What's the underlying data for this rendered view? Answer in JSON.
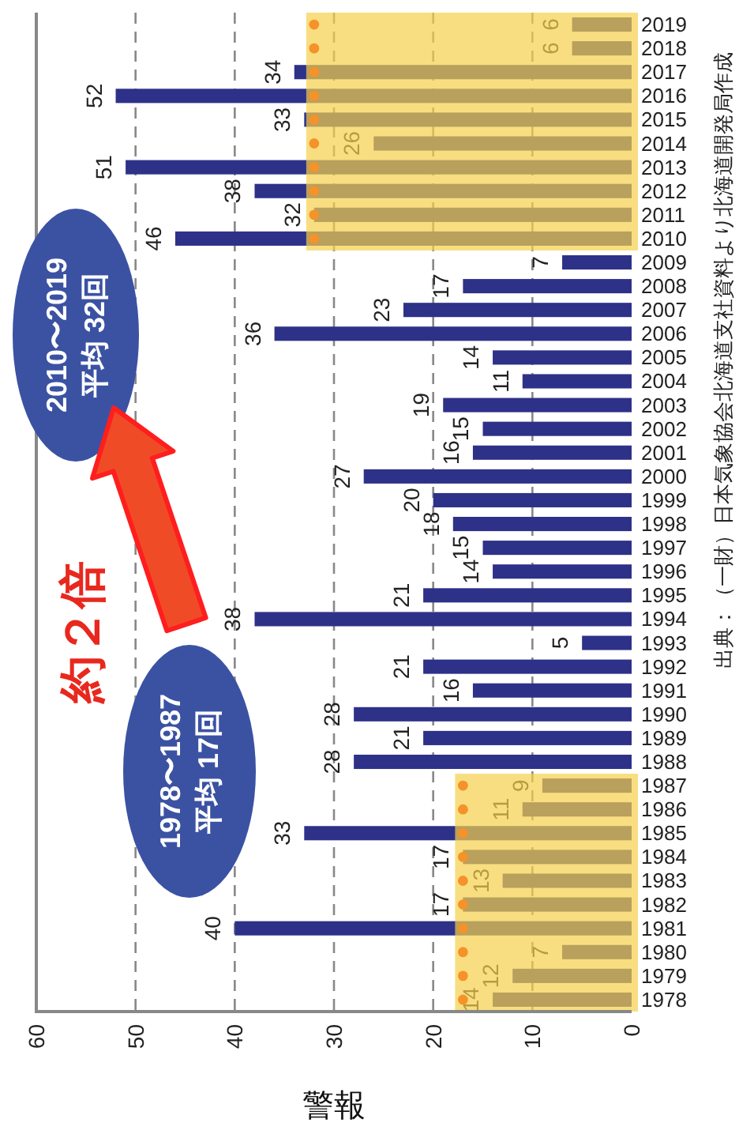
{
  "chart_data": {
    "type": "bar",
    "orientation": "horizontal",
    "xlabel": "警報",
    "categories": [
      "2019",
      "2018",
      "2017",
      "2016",
      "2015",
      "2014",
      "2013",
      "2012",
      "2011",
      "2010",
      "2009",
      "2008",
      "2007",
      "2006",
      "2005",
      "2004",
      "2003",
      "2002",
      "2001",
      "2000",
      "1999",
      "1998",
      "1997",
      "1996",
      "1995",
      "1994",
      "1993",
      "1992",
      "1991",
      "1990",
      "1989",
      "1988",
      "1987",
      "1986",
      "1985",
      "1984",
      "1983",
      "1982",
      "1981",
      "1980",
      "1979",
      "1978"
    ],
    "series": [
      {
        "color": "#2e3188",
        "values": [
          6,
          6,
          34,
          52,
          33,
          26,
          51,
          38,
          32,
          46,
          7,
          17,
          23,
          36,
          14,
          11,
          19,
          15,
          16,
          27,
          20,
          18,
          15,
          14,
          21,
          38,
          5,
          21,
          16,
          28,
          21,
          28,
          9,
          11,
          33,
          17,
          13,
          17,
          40,
          7,
          12,
          14
        ],
        "value_labels": [
          "6",
          "6",
          "34",
          "52",
          "33",
          "26",
          "51",
          "38",
          "32",
          "46",
          "7",
          "17",
          "23",
          "36",
          "14",
          "11",
          "19",
          "15",
          "16",
          "27",
          "20",
          "18",
          "15",
          "14",
          "21",
          "38",
          "5",
          "21",
          "16",
          "28",
          "21",
          "28",
          "9",
          "11",
          "33",
          "17",
          "13",
          "17",
          "40",
          "7",
          "12",
          "14"
        ]
      },
      {
        "type": "scatter",
        "color": "#f5922a",
        "values": [
          32,
          32,
          32,
          32,
          32,
          32,
          32,
          32,
          32,
          32,
          null,
          null,
          null,
          null,
          null,
          null,
          null,
          null,
          null,
          null,
          null,
          null,
          null,
          null,
          null,
          null,
          null,
          null,
          null,
          null,
          null,
          null,
          17,
          17,
          17,
          17,
          17,
          17,
          17,
          17,
          17,
          17
        ]
      }
    ],
    "xlim": [
      60,
      0
    ],
    "xticks": [
      0,
      10,
      20,
      30,
      40,
      50,
      60
    ],
    "grid": "x",
    "line_style": "dashed",
    "bands": [
      {
        "axis": "y",
        "from": "2019",
        "to": "2010",
        "color": "#f5d04a"
      },
      {
        "axis": "y",
        "from": "1987",
        "to": "1978",
        "color": "#f5d04a"
      }
    ],
    "annotations": [
      "1978〜1987\n平均 17回",
      "2010〜2019\n平均 32回",
      "約２倍",
      "出典：（一財）日本気象協会北海道支社資料より北海道開発局作成"
    ]
  }
}
